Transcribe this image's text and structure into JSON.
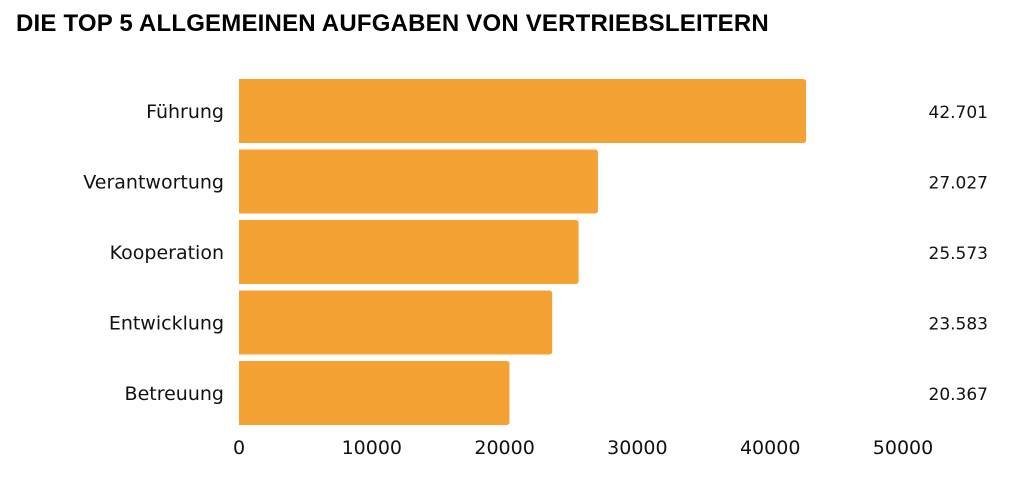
{
  "chart_data": {
    "type": "bar",
    "orientation": "horizontal",
    "title": "DIE TOP 5 ALLGEMEINEN AUFGABEN VON VERTRIEBSLEITERN",
    "categories": [
      "Führung",
      "Verantwortung",
      "Kooperation",
      "Entwicklung",
      "Betreuung"
    ],
    "values": [
      42701,
      27027,
      25573,
      23583,
      20367
    ],
    "value_labels": [
      "42.701",
      "27.027",
      "25.573",
      "23.583",
      "20.367"
    ],
    "xlim": [
      0,
      50000
    ],
    "xticks": [
      "0",
      "10000",
      "20000",
      "30000",
      "40000",
      "50000"
    ],
    "xlabel": "",
    "ylabel": "",
    "grid": false,
    "bar_color": "#F4A233"
  }
}
